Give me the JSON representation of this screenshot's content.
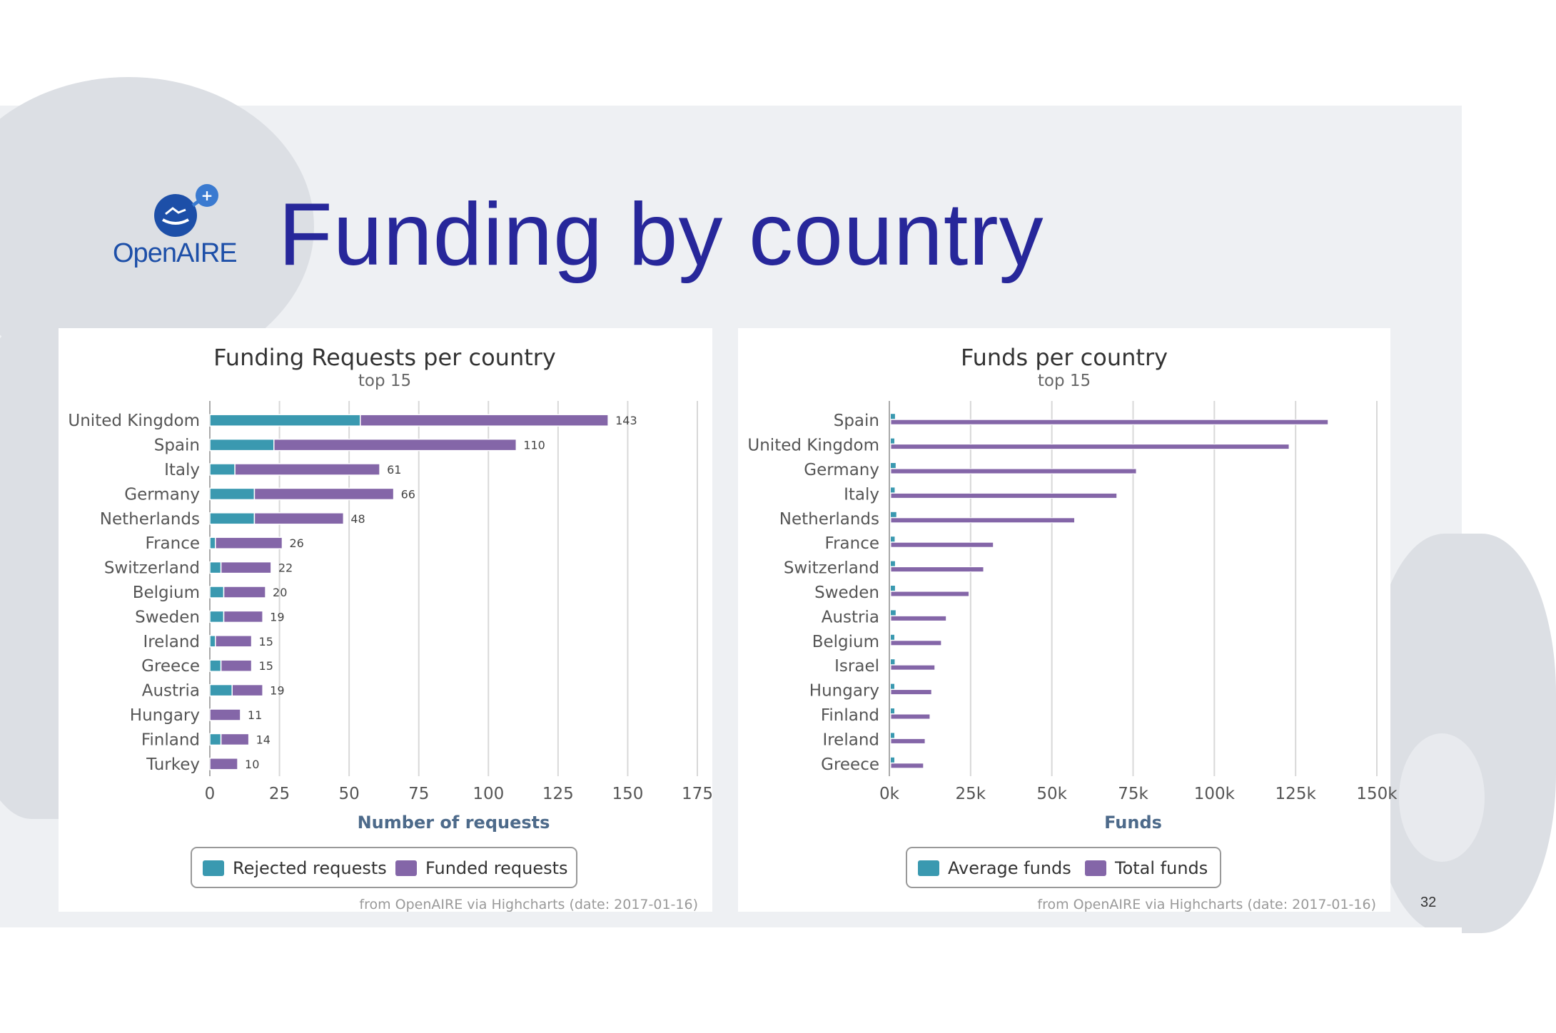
{
  "slide": {
    "title": "Funding by country",
    "page_number": "32",
    "logo_text": "OpenAIRE"
  },
  "colors": {
    "teal": "#3a99b0",
    "purple": "#8466a8",
    "title": "#27279a"
  },
  "chart_data": [
    {
      "type": "bar",
      "orientation": "horizontal",
      "stacked": true,
      "title": "Funding Requests per country",
      "subtitle": "top 15",
      "xlabel": "Number of requests",
      "categories": [
        "United Kingdom",
        "Spain",
        "Italy",
        "Germany",
        "Netherlands",
        "France",
        "Switzerland",
        "Belgium",
        "Sweden",
        "Ireland",
        "Greece",
        "Austria",
        "Hungary",
        "Finland",
        "Turkey"
      ],
      "series": [
        {
          "name": "Rejected requests",
          "color": "#3a99b0",
          "values": [
            54,
            23,
            9,
            16,
            16,
            2,
            4,
            5,
            5,
            2,
            4,
            8,
            0,
            4,
            0
          ]
        },
        {
          "name": "Funded requests",
          "color": "#8466a8",
          "values": [
            89,
            87,
            52,
            50,
            32,
            24,
            18,
            15,
            14,
            13,
            11,
            11,
            11,
            10,
            10
          ]
        }
      ],
      "totals": [
        143,
        110,
        61,
        66,
        48,
        26,
        22,
        20,
        19,
        15,
        15,
        19,
        11,
        14,
        10
      ],
      "axis": {
        "min": 0,
        "max": 175,
        "ticks": [
          0,
          25,
          50,
          75,
          100,
          125,
          150,
          175
        ]
      },
      "grid": true,
      "legend": "bottom-center",
      "credits": "from OpenAIRE via Highcharts (date: 2017-01-16)"
    },
    {
      "type": "bar",
      "orientation": "horizontal",
      "title": "Funds per country",
      "subtitle": "top 15",
      "xlabel": "Funds",
      "categories": [
        "Spain",
        "United Kingdom",
        "Germany",
        "Italy",
        "Netherlands",
        "France",
        "Switzerland",
        "Sweden",
        "Austria",
        "Belgium",
        "Israel",
        "Hungary",
        "Finland",
        "Ireland",
        "Greece"
      ],
      "series": [
        {
          "name": "Average funds",
          "color": "#3a99b0",
          "values": [
            1300,
            1100,
            1500,
            1200,
            1700,
            1200,
            1300,
            1300,
            1500,
            1100,
            1200,
            1100,
            1100,
            1000,
            1000
          ]
        },
        {
          "name": "Total funds",
          "color": "#8466a8",
          "values": [
            135000,
            123000,
            76000,
            70000,
            57000,
            32000,
            29000,
            24500,
            17500,
            16000,
            14000,
            13000,
            12500,
            11000,
            10500
          ]
        }
      ],
      "axis": {
        "min": 0,
        "max": 150000,
        "ticks": [
          "0k",
          "25k",
          "50k",
          "75k",
          "100k",
          "125k",
          "150k"
        ]
      },
      "grid": true,
      "legend": "bottom-center",
      "credits": "from OpenAIRE via Highcharts (date: 2017-01-16)"
    }
  ]
}
